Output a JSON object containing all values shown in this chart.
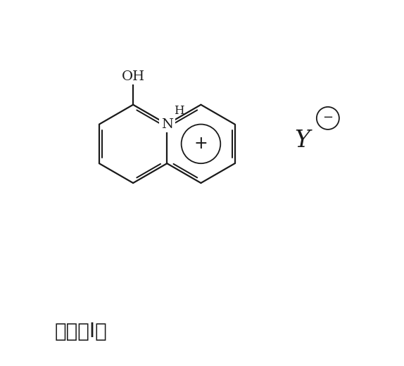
{
  "bg_color": "#ffffff",
  "line_color": "#1a1a1a",
  "line_width": 1.6,
  "dbo": 0.09,
  "label_fontsize": 14,
  "caption_fontsize": 20,
  "caption_text": "通式（I）",
  "OH_label": "OH",
  "H_label": "H",
  "N_label": "N",
  "plus_label": "+",
  "Y_label": "Y",
  "minus_label": "−",
  "figsize": [
    5.74,
    5.2
  ],
  "dpi": 100
}
